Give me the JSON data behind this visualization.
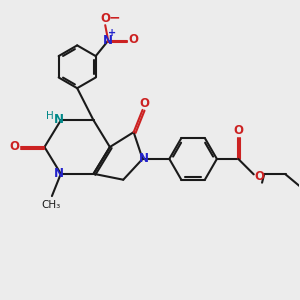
{
  "bg_color": "#ececec",
  "bond_color": "#1a1a1a",
  "n_color": "#2222cc",
  "o_color": "#cc2222",
  "h_color": "#008888",
  "line_width": 1.5,
  "figsize": [
    3.0,
    3.0
  ],
  "dpi": 100,
  "xlim": [
    0,
    10
  ],
  "ylim": [
    0,
    10
  ]
}
